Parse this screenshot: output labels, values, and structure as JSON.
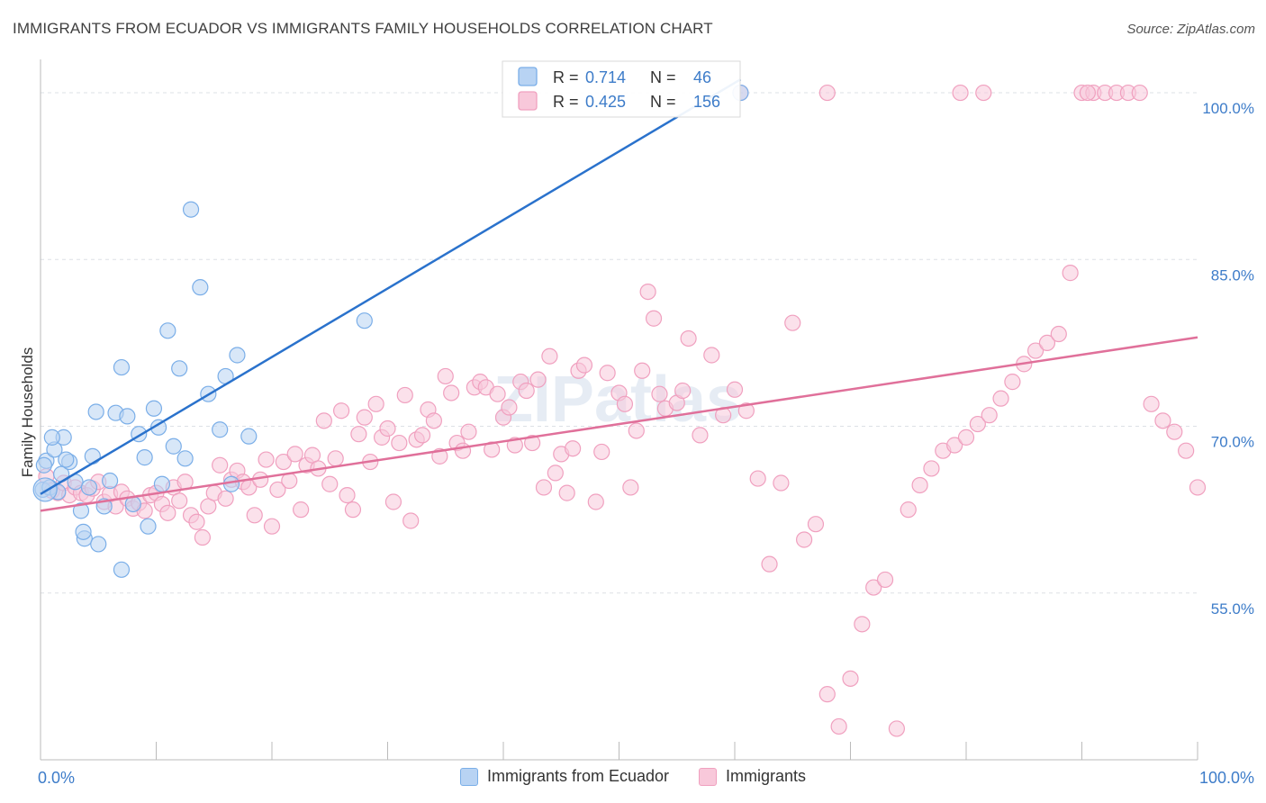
{
  "title": "IMMIGRANTS FROM ECUADOR VS IMMIGRANTS FAMILY HOUSEHOLDS CORRELATION CHART",
  "source": "Source: ZipAtlas.com",
  "watermark": "ZIPatlas",
  "chart_data": {
    "type": "scatter",
    "ylabel": "Family Households",
    "xlim": [
      0,
      100
    ],
    "ylim": [
      40,
      103
    ],
    "x_tick_labels": [
      "0.0%",
      "100.0%"
    ],
    "y_ticks": [
      {
        "value": 55,
        "label": "55.0%"
      },
      {
        "value": 70,
        "label": "70.0%"
      },
      {
        "value": 85,
        "label": "85.0%"
      },
      {
        "value": 100,
        "label": "100.0%"
      }
    ],
    "grid": "horizontal-dashed",
    "legend_position": "top",
    "legend": [
      {
        "r_label": "R =",
        "r_value": "0.714",
        "n_label": "N =",
        "n_value": "46"
      },
      {
        "r_label": "R =",
        "r_value": "0.425",
        "n_label": "N =",
        "n_value": "156"
      }
    ],
    "series": [
      {
        "name": "Immigrants from Ecuador",
        "color": "#7aaee8",
        "fill": "#b8d3f3",
        "line_color": "#2a72cc",
        "trend": {
          "x": [
            0,
            60.5
          ],
          "y": [
            63.9,
            101.2
          ]
        },
        "points": [
          [
            0.2,
            64.3
          ],
          [
            0.5,
            66.9
          ],
          [
            0.8,
            64.5
          ],
          [
            1.2,
            67.9
          ],
          [
            1.5,
            64.1
          ],
          [
            1.8,
            65.7
          ],
          [
            2.0,
            69.0
          ],
          [
            2.5,
            66.8
          ],
          [
            3.0,
            65.0
          ],
          [
            3.5,
            62.4
          ],
          [
            3.8,
            59.9
          ],
          [
            4.2,
            64.5
          ],
          [
            4.5,
            67.3
          ],
          [
            5.0,
            59.4
          ],
          [
            5.5,
            62.8
          ],
          [
            6.0,
            65.1
          ],
          [
            6.5,
            71.2
          ],
          [
            7.0,
            57.1
          ],
          [
            7.5,
            70.9
          ],
          [
            8.0,
            63.0
          ],
          [
            8.5,
            69.3
          ],
          [
            9.0,
            67.2
          ],
          [
            9.3,
            61.0
          ],
          [
            9.8,
            71.6
          ],
          [
            10.2,
            69.9
          ],
          [
            10.5,
            64.8
          ],
          [
            11.0,
            78.6
          ],
          [
            11.5,
            68.2
          ],
          [
            12.0,
            75.2
          ],
          [
            12.5,
            67.1
          ],
          [
            13.0,
            89.5
          ],
          [
            13.8,
            82.5
          ],
          [
            14.5,
            72.9
          ],
          [
            15.5,
            69.7
          ],
          [
            16.0,
            74.5
          ],
          [
            16.5,
            64.8
          ],
          [
            17.0,
            76.4
          ],
          [
            18.0,
            69.1
          ],
          [
            28.0,
            79.5
          ],
          [
            60.5,
            100.0
          ],
          [
            0.3,
            66.5
          ],
          [
            1.0,
            69.0
          ],
          [
            2.2,
            67.0
          ],
          [
            4.8,
            71.3
          ],
          [
            7.0,
            75.3
          ],
          [
            3.7,
            60.5
          ]
        ]
      },
      {
        "name": "Immigrants",
        "color": "#f0a0bf",
        "fill": "#f8c8da",
        "line_color": "#e0709a",
        "trend": {
          "x": [
            0,
            100
          ],
          "y": [
            62.4,
            78.0
          ]
        },
        "points": [
          [
            0.5,
            65.5
          ],
          [
            1.0,
            64.2
          ],
          [
            1.5,
            64.0
          ],
          [
            2.0,
            64.9
          ],
          [
            2.5,
            63.8
          ],
          [
            3.0,
            64.5
          ],
          [
            3.5,
            64.0
          ],
          [
            4.0,
            63.8
          ],
          [
            4.5,
            64.4
          ],
          [
            5.0,
            65.0
          ],
          [
            5.5,
            63.2
          ],
          [
            6.0,
            63.9
          ],
          [
            6.5,
            62.8
          ],
          [
            7.0,
            64.1
          ],
          [
            7.5,
            63.5
          ],
          [
            8.0,
            62.6
          ],
          [
            8.5,
            63.1
          ],
          [
            9.0,
            62.4
          ],
          [
            9.5,
            63.8
          ],
          [
            10.0,
            64.0
          ],
          [
            10.5,
            63.0
          ],
          [
            11.0,
            62.2
          ],
          [
            11.5,
            64.5
          ],
          [
            12.0,
            63.3
          ],
          [
            12.5,
            65.0
          ],
          [
            13.0,
            62.0
          ],
          [
            13.5,
            61.4
          ],
          [
            14.0,
            60.0
          ],
          [
            14.5,
            62.8
          ],
          [
            15.0,
            64.0
          ],
          [
            15.5,
            66.5
          ],
          [
            16.0,
            63.5
          ],
          [
            16.5,
            65.2
          ],
          [
            17.0,
            66.0
          ],
          [
            17.5,
            65.0
          ],
          [
            18.0,
            64.5
          ],
          [
            18.5,
            62.0
          ],
          [
            19.0,
            65.2
          ],
          [
            19.5,
            67.0
          ],
          [
            20.0,
            61.0
          ],
          [
            20.5,
            64.3
          ],
          [
            21.0,
            66.8
          ],
          [
            21.5,
            65.1
          ],
          [
            22.0,
            67.5
          ],
          [
            22.5,
            62.5
          ],
          [
            23.0,
            66.5
          ],
          [
            23.5,
            67.4
          ],
          [
            24.0,
            66.2
          ],
          [
            24.5,
            70.5
          ],
          [
            25.0,
            64.8
          ],
          [
            25.5,
            67.1
          ],
          [
            26.0,
            71.4
          ],
          [
            26.5,
            63.8
          ],
          [
            27.0,
            62.5
          ],
          [
            27.5,
            69.3
          ],
          [
            28.0,
            70.8
          ],
          [
            28.5,
            66.8
          ],
          [
            29.0,
            72.0
          ],
          [
            29.5,
            69.0
          ],
          [
            30.0,
            69.8
          ],
          [
            30.5,
            63.2
          ],
          [
            31.0,
            68.5
          ],
          [
            31.5,
            72.8
          ],
          [
            32.0,
            61.5
          ],
          [
            32.5,
            68.8
          ],
          [
            33.0,
            69.2
          ],
          [
            33.5,
            71.5
          ],
          [
            34.0,
            70.5
          ],
          [
            34.5,
            67.3
          ],
          [
            35.0,
            74.5
          ],
          [
            35.5,
            73.0
          ],
          [
            36.0,
            68.5
          ],
          [
            36.5,
            67.8
          ],
          [
            37.0,
            69.5
          ],
          [
            37.5,
            73.5
          ],
          [
            38.0,
            74.0
          ],
          [
            38.5,
            73.5
          ],
          [
            39.0,
            67.9
          ],
          [
            39.5,
            72.9
          ],
          [
            40.0,
            70.8
          ],
          [
            40.5,
            71.7
          ],
          [
            41.0,
            68.3
          ],
          [
            41.5,
            74.0
          ],
          [
            42.0,
            73.2
          ],
          [
            42.5,
            68.5
          ],
          [
            43.0,
            74.2
          ],
          [
            43.5,
            64.5
          ],
          [
            44.0,
            76.3
          ],
          [
            44.5,
            65.8
          ],
          [
            45.0,
            67.5
          ],
          [
            45.5,
            64.0
          ],
          [
            46.0,
            68.0
          ],
          [
            46.5,
            75.0
          ],
          [
            47.0,
            75.5
          ],
          [
            48.0,
            63.2
          ],
          [
            48.5,
            67.7
          ],
          [
            49.0,
            74.8
          ],
          [
            50.0,
            73.0
          ],
          [
            50.5,
            72.0
          ],
          [
            51.0,
            64.5
          ],
          [
            51.5,
            69.6
          ],
          [
            52.0,
            75.0
          ],
          [
            52.5,
            82.1
          ],
          [
            53.0,
            79.7
          ],
          [
            53.5,
            72.9
          ],
          [
            54.0,
            71.6
          ],
          [
            55.0,
            72.1
          ],
          [
            55.5,
            73.2
          ],
          [
            56.0,
            77.9
          ],
          [
            57.0,
            69.2
          ],
          [
            58.0,
            76.4
          ],
          [
            59.0,
            71.0
          ],
          [
            60.0,
            73.3
          ],
          [
            61.0,
            71.4
          ],
          [
            62.0,
            65.3
          ],
          [
            63.0,
            57.6
          ],
          [
            64.0,
            64.9
          ],
          [
            65.0,
            79.3
          ],
          [
            66.0,
            59.8
          ],
          [
            67.0,
            61.2
          ],
          [
            68.0,
            45.9
          ],
          [
            69.0,
            43.0
          ],
          [
            70.0,
            47.3
          ],
          [
            71.0,
            52.2
          ],
          [
            72.0,
            55.5
          ],
          [
            73.0,
            56.2
          ],
          [
            74.0,
            42.8
          ],
          [
            75.0,
            62.5
          ],
          [
            76.0,
            64.7
          ],
          [
            77.0,
            66.2
          ],
          [
            78.0,
            67.8
          ],
          [
            79.0,
            68.3
          ],
          [
            80.0,
            69.0
          ],
          [
            81.0,
            70.2
          ],
          [
            82.0,
            71.0
          ],
          [
            83.0,
            72.5
          ],
          [
            84.0,
            74.0
          ],
          [
            85.0,
            75.6
          ],
          [
            86.0,
            76.8
          ],
          [
            87.0,
            77.5
          ],
          [
            88.0,
            78.3
          ],
          [
            89.0,
            83.8
          ],
          [
            90.0,
            100.0
          ],
          [
            91.0,
            100.0
          ],
          [
            92.0,
            100.0
          ],
          [
            93.0,
            100.0
          ],
          [
            94.0,
            100.0
          ],
          [
            95.0,
            100.0
          ],
          [
            96.0,
            72.0
          ],
          [
            97.0,
            70.5
          ],
          [
            98.0,
            69.5
          ],
          [
            99.0,
            67.8
          ],
          [
            100.0,
            64.5
          ],
          [
            60.5,
            100.0
          ],
          [
            68.0,
            100.0
          ],
          [
            79.5,
            100.0
          ],
          [
            81.5,
            100.0
          ],
          [
            90.5,
            100.0
          ]
        ]
      }
    ]
  }
}
